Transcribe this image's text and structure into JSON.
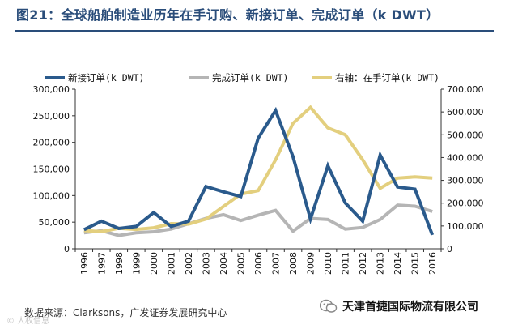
{
  "figure": {
    "title": "图21：全球船舶制造业历年在手订购、新接订单、完成订单（k DWT）",
    "source": "数据来源：Clarksons，广发证券发展研究中心",
    "brand": "天津首捷国际物流有限公司",
    "watermark": "© 人权信息"
  },
  "chart_data": {
    "type": "line",
    "title": "全球船舶制造业历年在手订购、新接订单、完成订单（k DWT）",
    "categories": [
      "1996",
      "1997",
      "1998",
      "1999",
      "2000",
      "2001",
      "2002",
      "2003",
      "2004",
      "2005",
      "2006",
      "2007",
      "2008",
      "2009",
      "2010",
      "2011",
      "2012",
      "2013",
      "2014",
      "2015",
      "2016"
    ],
    "y_left": {
      "min": 0,
      "max": 300000,
      "ticks": [
        "0",
        "50,000",
        "100,000",
        "150,000",
        "200,000",
        "250,000",
        "300,000"
      ]
    },
    "y_right": {
      "min": 0,
      "max": 700000,
      "ticks": [
        "0",
        "100,000",
        "200,000",
        "300,000",
        "400,000",
        "500,000",
        "600,000",
        "700,000"
      ]
    },
    "series": [
      {
        "name": "新接订单(k DWT)",
        "axis": "left",
        "color": "#2a5a8c",
        "values": [
          36000,
          52000,
          38000,
          42000,
          68000,
          42000,
          52000,
          117000,
          107000,
          98000,
          208000,
          260000,
          173000,
          56000,
          156000,
          86000,
          52000,
          176000,
          116000,
          112000,
          26000
        ]
      },
      {
        "name": "完成订单(k DWT)",
        "axis": "left",
        "color": "#b5b5b5",
        "values": [
          30000,
          34000,
          25000,
          30000,
          32000,
          37000,
          47000,
          57000,
          64000,
          53000,
          63000,
          72000,
          33000,
          57000,
          55000,
          37000,
          40000,
          55000,
          82000,
          80000,
          70000
        ]
      },
      {
        "name": "右轴：在手订单(k DWT)",
        "axis": "right",
        "color": "#e3cf7e",
        "values": [
          80000,
          75000,
          90000,
          85000,
          92000,
          110000,
          108000,
          130000,
          185000,
          240000,
          255000,
          390000,
          550000,
          620000,
          530000,
          500000,
          390000,
          265000,
          310000,
          315000,
          310000
        ]
      }
    ]
  }
}
